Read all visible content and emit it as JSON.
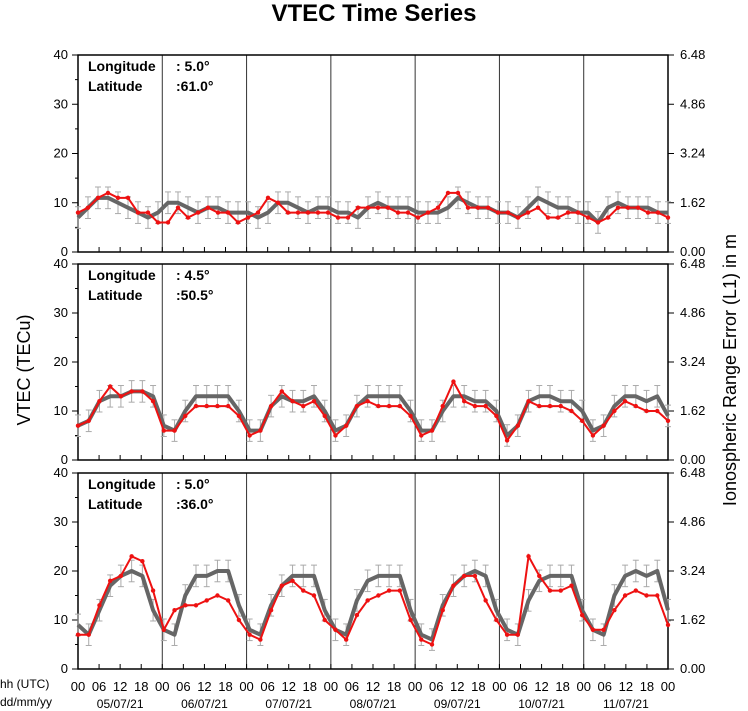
{
  "title": "VTEC Time Series",
  "chart_data": {
    "type": "line",
    "title": "VTEC Time Series",
    "ylabel_left": "VTEC (TECu)",
    "ylabel_right": "Ionospheric Range Error (L1) in m",
    "x_hour_label": "hh (UTC)",
    "x_date_label": "dd/mm/yy",
    "x_hour_ticks": [
      "00",
      "06",
      "12",
      "18",
      "00",
      "06",
      "12",
      "18",
      "00",
      "06",
      "12",
      "18",
      "00",
      "06",
      "12",
      "18",
      "00",
      "06",
      "12",
      "18",
      "00",
      "06",
      "12",
      "18",
      "00",
      "06",
      "12",
      "18",
      "00"
    ],
    "x_dates": [
      "05/07/21",
      "06/07/21",
      "07/07/21",
      "08/07/21",
      "09/07/21",
      "10/07/21",
      "11/07/21"
    ],
    "y_left_ticks": [
      "0",
      "10",
      "20",
      "30",
      "40"
    ],
    "y_right_ticks": [
      "0.00",
      "1.62",
      "3.24",
      "4.86",
      "6.48"
    ],
    "ylim": [
      0,
      40
    ],
    "series_colors": {
      "observed": "#ee1111",
      "model": "#666666",
      "error_bars": "#aaaaaa"
    },
    "panels": [
      {
        "longitude_label": "Longitude",
        "longitude_value": ":   5.0°",
        "latitude_label": "Latitude",
        "latitude_value": ":61.0°",
        "model": [
          7,
          9,
          11,
          11,
          10,
          9,
          8,
          7,
          8,
          10,
          10,
          9,
          8,
          9,
          9,
          8,
          8,
          8,
          7,
          8,
          10,
          10,
          9,
          8,
          9,
          9,
          8,
          8,
          7,
          9,
          10,
          9,
          9,
          9,
          8,
          8,
          8,
          9,
          11,
          10,
          9,
          9,
          8,
          8,
          7,
          9,
          11,
          10,
          9,
          9,
          8,
          8,
          6,
          9,
          10,
          9,
          9,
          9,
          8,
          8
        ],
        "observed": [
          8,
          9,
          11,
          12,
          11,
          11,
          8,
          8,
          6,
          6,
          9,
          7,
          8,
          9,
          8,
          8,
          6,
          7,
          8,
          11,
          10,
          8,
          8,
          8,
          8,
          8,
          7,
          7,
          9,
          9,
          9,
          9,
          8,
          8,
          7,
          8,
          9,
          12,
          12,
          9,
          9,
          9,
          8,
          8,
          7,
          8,
          9,
          7,
          7,
          8,
          8,
          7,
          6,
          7,
          9,
          9,
          9,
          8,
          8,
          7
        ]
      },
      {
        "longitude_label": "Longitude",
        "longitude_value": ":   4.5°",
        "latitude_label": "Latitude",
        "latitude_value": ":50.5°",
        "model": [
          7,
          8,
          12,
          13,
          13,
          14,
          14,
          13,
          7,
          6,
          10,
          13,
          13,
          13,
          13,
          10,
          6,
          6,
          11,
          13,
          12,
          12,
          13,
          10,
          6,
          7,
          11,
          13,
          13,
          13,
          13,
          10,
          6,
          6,
          10,
          13,
          13,
          12,
          12,
          10,
          5,
          7,
          12,
          13,
          13,
          12,
          12,
          10,
          6,
          7,
          11,
          13,
          13,
          12,
          13,
          9
        ],
        "observed": [
          7,
          8,
          12,
          15,
          13,
          14,
          14,
          12,
          6,
          6,
          9,
          11,
          11,
          11,
          11,
          9,
          5,
          6,
          11,
          14,
          12,
          11,
          12,
          9,
          5,
          7,
          11,
          12,
          11,
          11,
          11,
          9,
          5,
          6,
          11,
          16,
          12,
          11,
          11,
          9,
          4,
          7,
          12,
          11,
          11,
          11,
          10,
          8,
          5,
          7,
          10,
          12,
          11,
          10,
          10,
          8
        ]
      },
      {
        "longitude_label": "Longitude",
        "longitude_value": ":   5.0°",
        "latitude_label": "Latitude",
        "latitude_value": ":36.0°",
        "model": [
          9,
          7,
          12,
          17,
          19,
          20,
          19,
          12,
          8,
          7,
          15,
          19,
          19,
          20,
          20,
          13,
          8,
          7,
          13,
          17,
          19,
          19,
          19,
          12,
          8,
          7,
          14,
          18,
          19,
          19,
          19,
          12,
          7,
          6,
          13,
          17,
          19,
          20,
          19,
          12,
          8,
          7,
          14,
          18,
          19,
          19,
          19,
          12,
          8,
          7,
          15,
          19,
          20,
          19,
          20,
          12
        ],
        "observed": [
          7,
          7,
          13,
          18,
          19,
          23,
          22,
          16,
          8,
          12,
          13,
          13,
          14,
          15,
          14,
          10,
          7,
          6,
          12,
          17,
          18,
          16,
          15,
          10,
          8,
          6,
          11,
          14,
          15,
          16,
          16,
          10,
          6,
          5,
          12,
          17,
          19,
          19,
          14,
          10,
          7,
          7,
          23,
          19,
          16,
          16,
          17,
          11,
          8,
          8,
          12,
          15,
          16,
          15,
          15,
          9
        ]
      }
    ]
  }
}
